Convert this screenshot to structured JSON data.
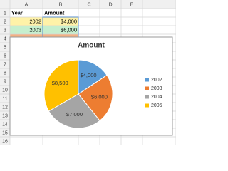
{
  "sheet": {
    "column_headers": [
      "A",
      "B",
      "C",
      "D",
      "E"
    ],
    "row_headers": [
      1,
      2,
      3,
      4,
      5,
      6,
      7,
      8,
      9,
      10,
      11,
      12,
      13,
      14,
      15,
      16
    ],
    "rows": [
      [
        "Year",
        "Amount"
      ],
      [
        2002,
        "$4,000"
      ],
      [
        2003,
        "$6,000"
      ]
    ]
  },
  "chart_data": {
    "type": "pie",
    "title": "Amount",
    "categories": [
      "2002",
      "2003",
      "2004",
      "2005"
    ],
    "values": [
      4000,
      6000,
      7000,
      8500
    ],
    "value_labels": [
      "$4,000",
      "$6,000",
      "$7,000",
      "$8,500"
    ],
    "colors": [
      "#5b9bd5",
      "#ed7d31",
      "#a5a5a5",
      "#ffc000"
    ],
    "legend": "right"
  }
}
